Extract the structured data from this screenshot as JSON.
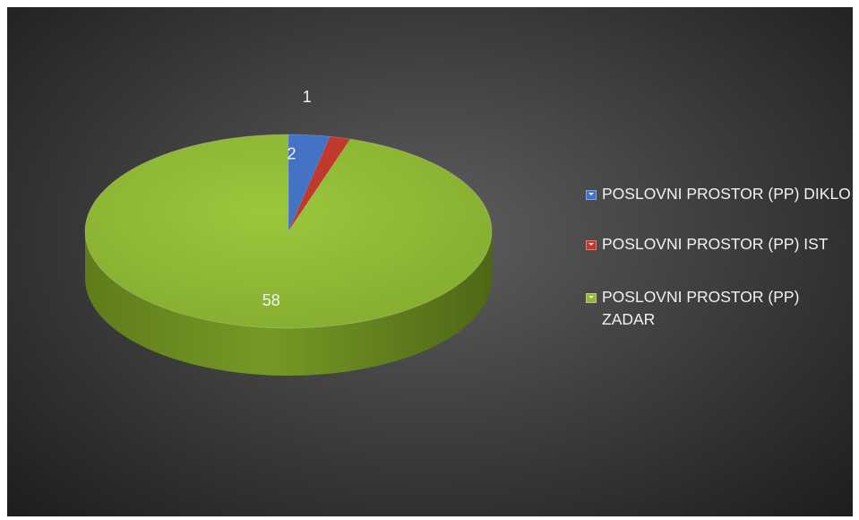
{
  "chart_data": {
    "type": "pie",
    "style": "3d",
    "title": "",
    "categories": [
      "POSLOVNI PROSTOR (PP) DIKLO",
      "POSLOVNI PROSTOR (PP) IST",
      "POSLOVNI PROSTOR (PP) ZADAR"
    ],
    "values": [
      2,
      1,
      58
    ],
    "data_labels": [
      "2",
      "1",
      "58"
    ],
    "colors": [
      "#4472c4",
      "#c0392b",
      "#8fb832"
    ],
    "legend_placement": "right",
    "background": "#3d3d3d"
  }
}
